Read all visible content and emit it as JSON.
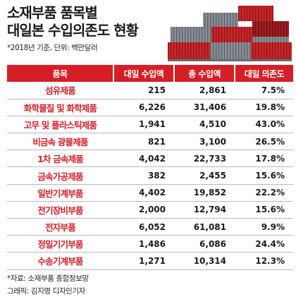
{
  "title_lines": [
    "소재부품 품목별",
    "대일본 수입의존도 현황"
  ],
  "note": "*2018년 기준, 단위: 백만달러",
  "colors": {
    "accent": "#d41f26",
    "container_red": "#c9272b",
    "container_grey": "#8a8f96"
  },
  "chart_data": {
    "type": "table",
    "columns": [
      "품목",
      "대일 수입액",
      "총 수입액",
      "대일 의존도"
    ],
    "rows": [
      [
        "섬유제품",
        "215",
        "2,861",
        "7.5%"
      ],
      [
        "화학물질 및 화학제품",
        "6,226",
        "31,406",
        "19.8%"
      ],
      [
        "고무 및 플라스틱제품",
        "1,941",
        "4,510",
        "43.0%"
      ],
      [
        "비금속 광물제품",
        "821",
        "3,100",
        "26.5%"
      ],
      [
        "1차 금속제품",
        "4,042",
        "22,733",
        "17.8%"
      ],
      [
        "금속가공제품",
        "382",
        "2,455",
        "15.6%"
      ],
      [
        "일반기계부품",
        "4,402",
        "19,852",
        "22.2%"
      ],
      [
        "전기장비부품",
        "2,000",
        "12,794",
        "15.6%"
      ],
      [
        "전자부품",
        "6,052",
        "61,081",
        "9.9%"
      ],
      [
        "정밀기기부품",
        "1,486",
        "6,086",
        "24.4%"
      ],
      [
        "수송기계부품",
        "1,271",
        "10,314",
        "12.3%"
      ]
    ]
  },
  "footer": {
    "source": "*자료: 소재부품 종합정보망",
    "credit": "그래픽: 김지영 디자인기자"
  }
}
